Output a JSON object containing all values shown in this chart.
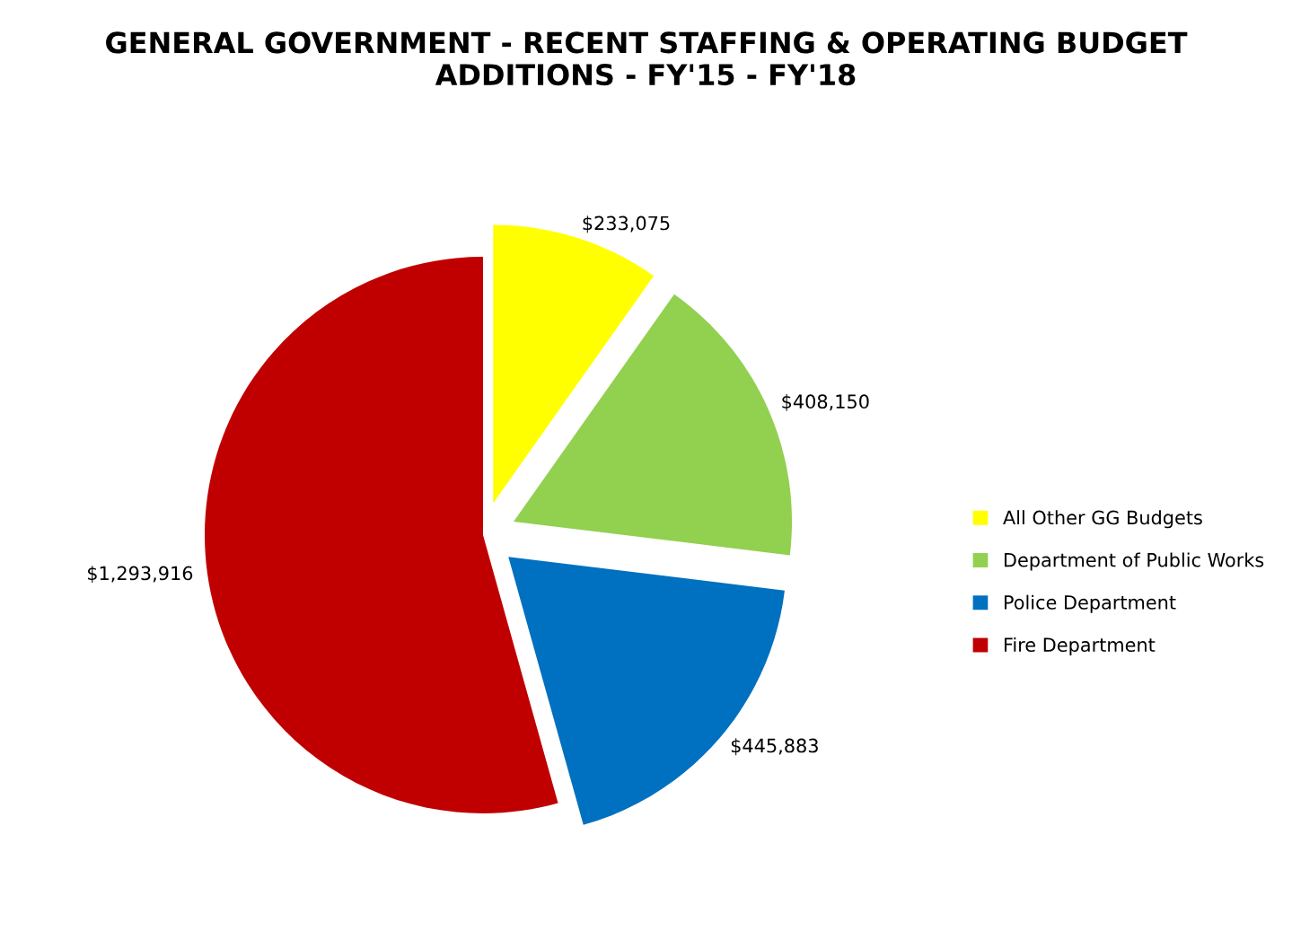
{
  "chart_data": {
    "type": "pie",
    "title": "GENERAL GOVERNMENT - RECENT STAFFING & OPERATING BUDGET\nADDITIONS - FY'15 - FY'18",
    "categories": [
      "All Other GG Budgets",
      "Department of Public Works",
      "Police Department",
      "Fire Department"
    ],
    "values": [
      233075,
      408150,
      445883,
      1293916
    ],
    "value_labels": [
      "$233,075",
      "$408,150",
      "$445,883",
      "$1,293,916"
    ],
    "colors": [
      "#ffff00",
      "#92d050",
      "#0070c0",
      "#c00000"
    ],
    "legend": "right"
  }
}
